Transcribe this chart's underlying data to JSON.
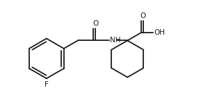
{
  "bg_color": "#ffffff",
  "line_color": "#1a1a1a",
  "line_width": 1.3,
  "text_color": "#1a1a1a",
  "font_size": 7.5,
  "label_F": "F",
  "label_O1": "O",
  "label_O2": "O",
  "label_NH": "NH",
  "label_OH": "OH",
  "xlim": [
    0,
    10
  ],
  "ylim": [
    0,
    5.5
  ]
}
